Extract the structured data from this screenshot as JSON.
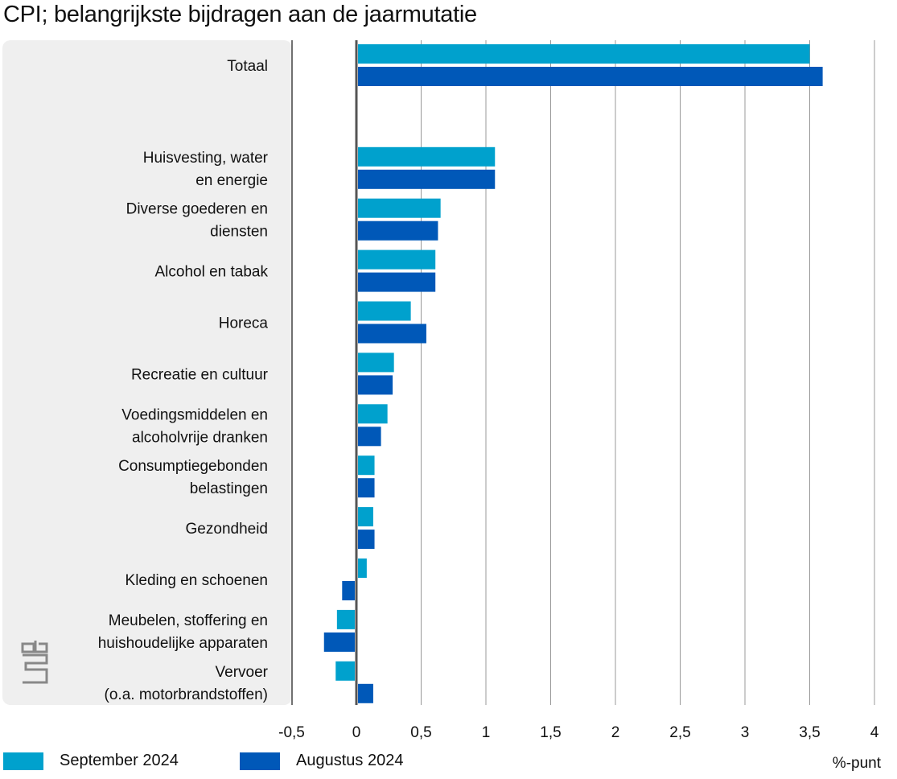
{
  "title": "CPI; belangrijkste bijdragen aan de jaarmutatie",
  "chart_data": {
    "type": "bar",
    "orientation": "horizontal",
    "title": "CPI; belangrijkste bijdragen aan de jaarmutatie",
    "xlabel": "%-punt",
    "xlim": [
      -0.5,
      4
    ],
    "ticks": [
      "-0,5",
      "0",
      "0,5",
      "1",
      "1,5",
      "2",
      "2,5",
      "3",
      "3,5",
      "4"
    ],
    "grid": true,
    "legend_position": "bottom-left",
    "categories": [
      [
        "Totaal"
      ],
      [
        "Huisvesting, water",
        "en energie"
      ],
      [
        "Diverse goederen en",
        "diensten"
      ],
      [
        "Alcohol en tabak"
      ],
      [
        "Horeca"
      ],
      [
        "Recreatie en cultuur"
      ],
      [
        "Voedingsmiddelen en",
        "alcoholvrije dranken"
      ],
      [
        "Consumptiegebonden",
        "belastingen"
      ],
      [
        "Gezondheid"
      ],
      [
        "Kleding en schoenen"
      ],
      [
        "Meubelen, stoffering en",
        "huishoudelijke apparaten"
      ],
      [
        "Vervoer",
        "(o.a. motorbrandstoffen)"
      ]
    ],
    "series": [
      {
        "name": "September 2024",
        "color": "#00a1cd",
        "values": [
          3.5,
          1.07,
          0.65,
          0.61,
          0.42,
          0.29,
          0.24,
          0.14,
          0.13,
          0.08,
          -0.15,
          -0.16
        ]
      },
      {
        "name": "Augustus 2024",
        "color": "#0058b8",
        "values": [
          3.6,
          1.07,
          0.63,
          0.61,
          0.54,
          0.28,
          0.19,
          0.14,
          0.14,
          -0.11,
          -0.25,
          0.13
        ]
      }
    ]
  },
  "logo": "cbs"
}
